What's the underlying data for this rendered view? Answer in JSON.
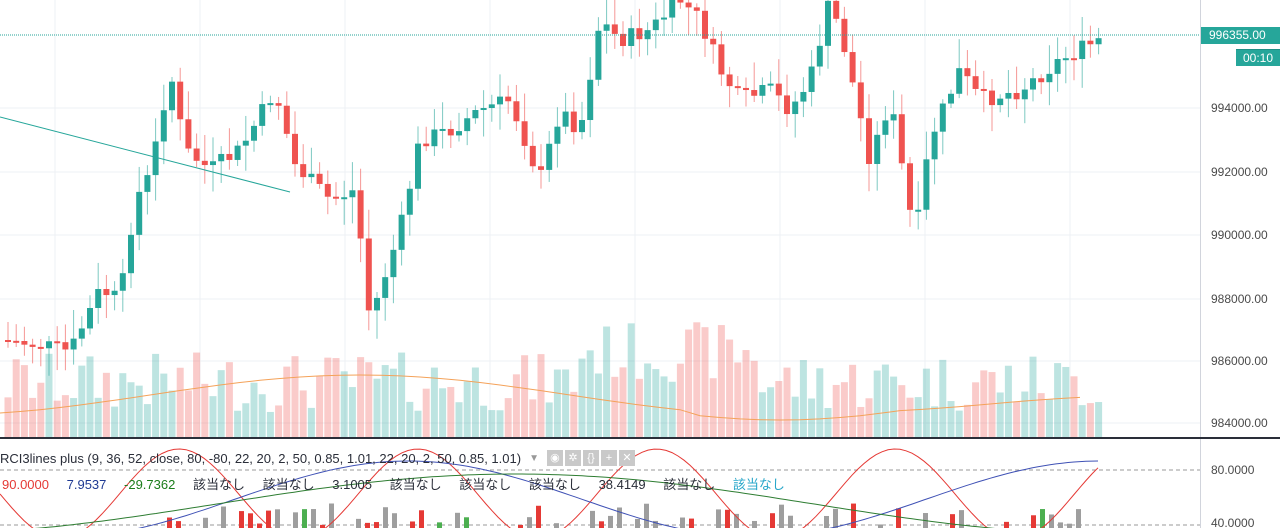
{
  "price_axis": {
    "labels": [
      "994000.00",
      "992000.00",
      "990000.00",
      "988000.00",
      "986000.00",
      "984000.00"
    ],
    "last_price": "996355.00",
    "countdown": "00:10"
  },
  "indicator": {
    "title": "RCI3lines plus (9, 36, 52, close, 80, -80, 22, 20, 2, 50, 0.85, 1.01, 22, 20, 2, 50, 0.85, 1.01)",
    "values": [
      {
        "text": "90.0000",
        "color": "#e53935"
      },
      {
        "text": "7.9537",
        "color": "#1f3a93"
      },
      {
        "text": "-29.7362",
        "color": "#1b7d1b"
      },
      {
        "text": "該当なし",
        "color": "#2a2e39"
      },
      {
        "text": "該当なし",
        "color": "#2a2e39"
      },
      {
        "text": "3.1005",
        "color": "#2a2e39"
      },
      {
        "text": "該当なし",
        "color": "#2a2e39"
      },
      {
        "text": "該当なし",
        "color": "#2a2e39"
      },
      {
        "text": "該当なし",
        "color": "#2a2e39"
      },
      {
        "text": "38.4149",
        "color": "#2a2e39"
      },
      {
        "text": "該当なし",
        "color": "#2a2e39"
      },
      {
        "text": "該当なし",
        "color": "#26a6c9"
      }
    ],
    "axis_labels": [
      "80.0000",
      "40.0000"
    ]
  },
  "colors": {
    "up": "#26a69a",
    "down": "#ef5350",
    "grid": "#f0f3fa"
  }
}
